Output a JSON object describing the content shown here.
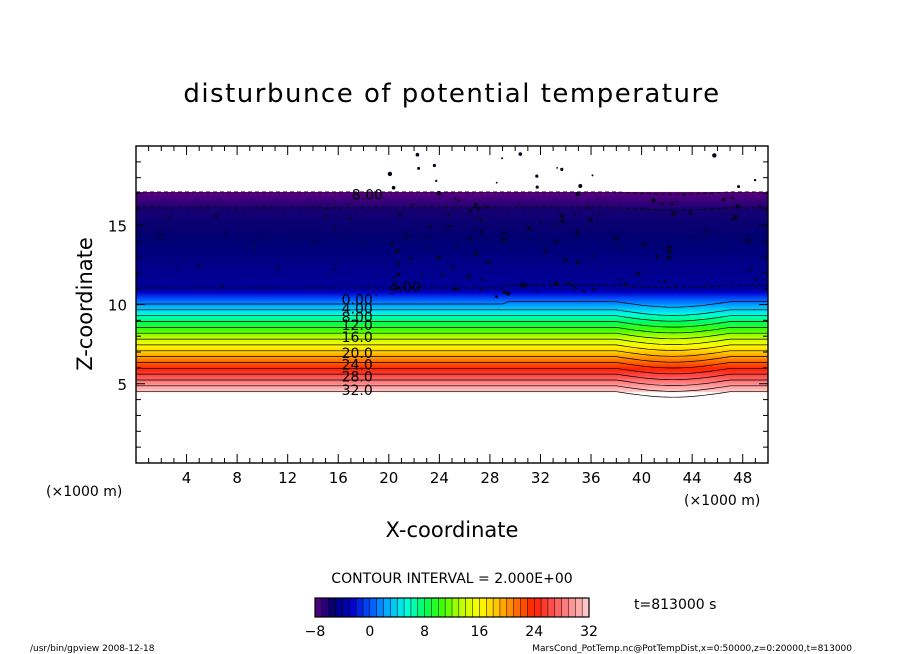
{
  "chart_data": {
    "type": "heatmap",
    "title": "disturbunce of potential temperature",
    "xlabel": "X-coordinate",
    "ylabel": "Z-coordinate",
    "x_unit_left": "(×1000 m)",
    "x_unit_right": "(×1000 m)",
    "xlim": [
      0,
      50
    ],
    "ylim": [
      0,
      20
    ],
    "x_ticks": [
      4,
      8,
      12,
      16,
      20,
      24,
      28,
      32,
      36,
      40,
      44,
      48
    ],
    "y_ticks": [
      5,
      10,
      15
    ],
    "field_bounds": {
      "z_bottom": 4.5,
      "z_top": 17.1
    },
    "contour_interval_text": "CONTOUR INTERVAL = 2.000E+00",
    "contour_labels": [
      {
        "text": "8.00",
        "x": 18.3,
        "z": 16.95
      },
      {
        "text": "4.00",
        "x": 21.3,
        "z": 11.1
      },
      {
        "text": "0.00",
        "x": 17.5,
        "z": 10.3
      },
      {
        "text": "4.00",
        "x": 17.5,
        "z": 9.75
      },
      {
        "text": "8.00",
        "x": 17.5,
        "z": 9.2
      },
      {
        "text": "12.0",
        "x": 17.5,
        "z": 8.7
      },
      {
        "text": "16.0",
        "x": 17.5,
        "z": 7.95
      },
      {
        "text": "20.0",
        "x": 17.5,
        "z": 6.95
      },
      {
        "text": "24.0",
        "x": 17.5,
        "z": 6.2
      },
      {
        "text": "28.0",
        "x": 17.5,
        "z": 5.45
      },
      {
        "text": "32.0",
        "x": 17.5,
        "z": 4.6
      }
    ],
    "colorbar": {
      "min": -8,
      "max": 32,
      "ticks": [
        "−8",
        "0",
        "8",
        "16",
        "24",
        "32"
      ],
      "colors": [
        "#5a0080",
        "#000070",
        "#0000c8",
        "#0050ff",
        "#00b0ff",
        "#00ffe0",
        "#00ff60",
        "#40ff00",
        "#c0ff00",
        "#ffff00",
        "#ffc000",
        "#ff7000",
        "#ff2000",
        "#ff5050",
        "#ff9090",
        "#ffd0d0"
      ]
    },
    "time_label": "t=813000 s"
  },
  "footer": {
    "left": "/usr/bin/gpview   2008-12-18",
    "right": "MarsCond_PotTemp.nc@PotTempDist,x=0:50000,z=0:20000,t=813000"
  }
}
